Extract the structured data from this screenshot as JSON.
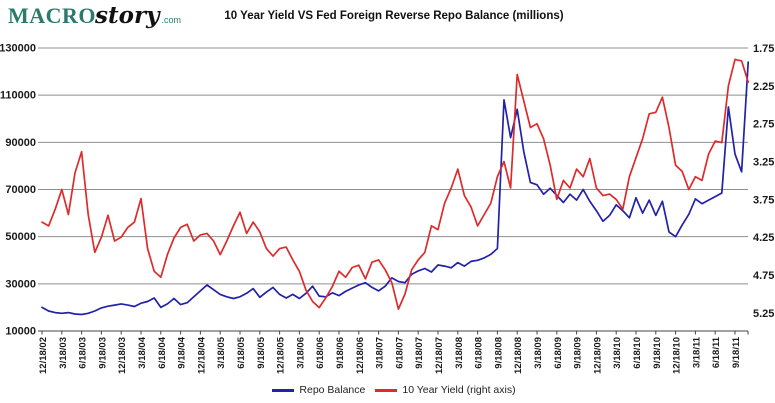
{
  "brand": {
    "name_main": "MACRO",
    "name_script": "story",
    "name_suffix": ".com"
  },
  "title": "10 Year Yield VS Fed Foreign Reverse Repo Balance (millions)",
  "legend": {
    "items": [
      {
        "label": "Repo Balance",
        "color": "#2121aa"
      },
      {
        "label": "10 Year Yield (right axis)",
        "color": "#dd2b2b"
      }
    ]
  },
  "chart_data": {
    "type": "line",
    "title": "10 Year Yield VS Fed Foreign Reverse Repo Balance (millions)",
    "grid": true,
    "legend_position": "bottom",
    "x_axis": {
      "tick_labels": [
        "12/18/02",
        "3/18/03",
        "6/18/03",
        "9/18/03",
        "12/18/03",
        "3/18/04",
        "6/18/04",
        "9/18/04",
        "12/18/04",
        "3/18/05",
        "6/18/05",
        "9/18/05",
        "12/18/05",
        "3/18/06",
        "6/18/06",
        "9/18/06",
        "12/18/06",
        "3/18/07",
        "6/18/07",
        "9/18/07",
        "12/18/07",
        "3/18/08",
        "6/18/08",
        "9/18/08",
        "12/18/08",
        "3/18/09",
        "6/18/09",
        "9/18/09",
        "12/18/09",
        "3/18/10",
        "6/18/10",
        "9/18/10",
        "12/18/10",
        "3/18/11",
        "6/18/11",
        "9/18/11"
      ],
      "data_interval": "monthly",
      "data_start": "12/18/02",
      "months_per_tick": 3
    },
    "left_axis": {
      "title": "Repo Balance (millions)",
      "ticks": [
        130000,
        110000,
        90000,
        70000,
        50000,
        30000,
        10000
      ],
      "min": 10000,
      "max": 130000
    },
    "right_axis": {
      "title": "10 Year Yield",
      "ticks": [
        1.75,
        2.25,
        2.75,
        3.25,
        3.75,
        4.25,
        4.75,
        5.25
      ],
      "min": 1.75,
      "max": 5.25,
      "inverted": true
    },
    "series": [
      {
        "name": "Repo Balance",
        "axis": "left",
        "color": "#2121aa",
        "values": [
          20000,
          18500,
          17800,
          17500,
          17800,
          17200,
          17000,
          17500,
          18500,
          19800,
          20500,
          21000,
          21500,
          21000,
          20400,
          21800,
          22500,
          24000,
          20000,
          21500,
          23800,
          21200,
          22000,
          24500,
          27000,
          29500,
          27500,
          25500,
          24500,
          23800,
          24500,
          26000,
          28000,
          24300,
          26500,
          28500,
          25500,
          24000,
          25500,
          23800,
          26000,
          29000,
          24800,
          24500,
          26200,
          25000,
          26800,
          28200,
          29500,
          30500,
          28500,
          27000,
          29000,
          32500,
          31000,
          30500,
          34000,
          35500,
          36500,
          35000,
          38000,
          37500,
          36800,
          39000,
          37500,
          39500,
          40000,
          41000,
          42500,
          45000,
          108000,
          92000,
          104000,
          86000,
          73000,
          72000,
          68000,
          70500,
          67500,
          64500,
          68000,
          65500,
          70000,
          65000,
          61000,
          56500,
          59000,
          63500,
          61000,
          58000,
          66500,
          60000,
          65500,
          59000,
          65000,
          52000,
          50000,
          55000,
          59500,
          66000,
          64000,
          65500,
          67000,
          68500,
          105000,
          85000,
          77500,
          124000
        ]
      },
      {
        "name": "10 Year Yield (right axis)",
        "axis": "right",
        "color": "#dd2b2b",
        "values": [
          4.05,
          4.1,
          3.88,
          3.62,
          3.95,
          3.4,
          3.12,
          3.95,
          4.45,
          4.25,
          3.96,
          4.3,
          4.25,
          4.12,
          4.05,
          3.74,
          4.4,
          4.7,
          4.78,
          4.48,
          4.26,
          4.12,
          4.08,
          4.3,
          4.22,
          4.2,
          4.3,
          4.48,
          4.3,
          4.1,
          3.92,
          4.2,
          4.05,
          4.18,
          4.4,
          4.5,
          4.4,
          4.38,
          4.55,
          4.7,
          4.95,
          5.1,
          5.18,
          5.05,
          4.9,
          4.7,
          4.78,
          4.65,
          4.62,
          4.8,
          4.58,
          4.55,
          4.68,
          4.85,
          5.2,
          5.0,
          4.68,
          4.55,
          4.45,
          4.1,
          4.15,
          3.8,
          3.6,
          3.35,
          3.7,
          3.85,
          4.1,
          3.95,
          3.8,
          3.45,
          3.25,
          3.6,
          2.1,
          2.45,
          2.8,
          2.75,
          2.95,
          3.3,
          3.75,
          3.5,
          3.6,
          3.35,
          3.45,
          3.21,
          3.6,
          3.7,
          3.68,
          3.75,
          3.88,
          3.45,
          3.2,
          2.95,
          2.62,
          2.6,
          2.4,
          2.8,
          3.3,
          3.38,
          3.62,
          3.45,
          3.5,
          3.15,
          2.98,
          3.0,
          2.25,
          1.9,
          1.92,
          2.2
        ]
      }
    ]
  }
}
